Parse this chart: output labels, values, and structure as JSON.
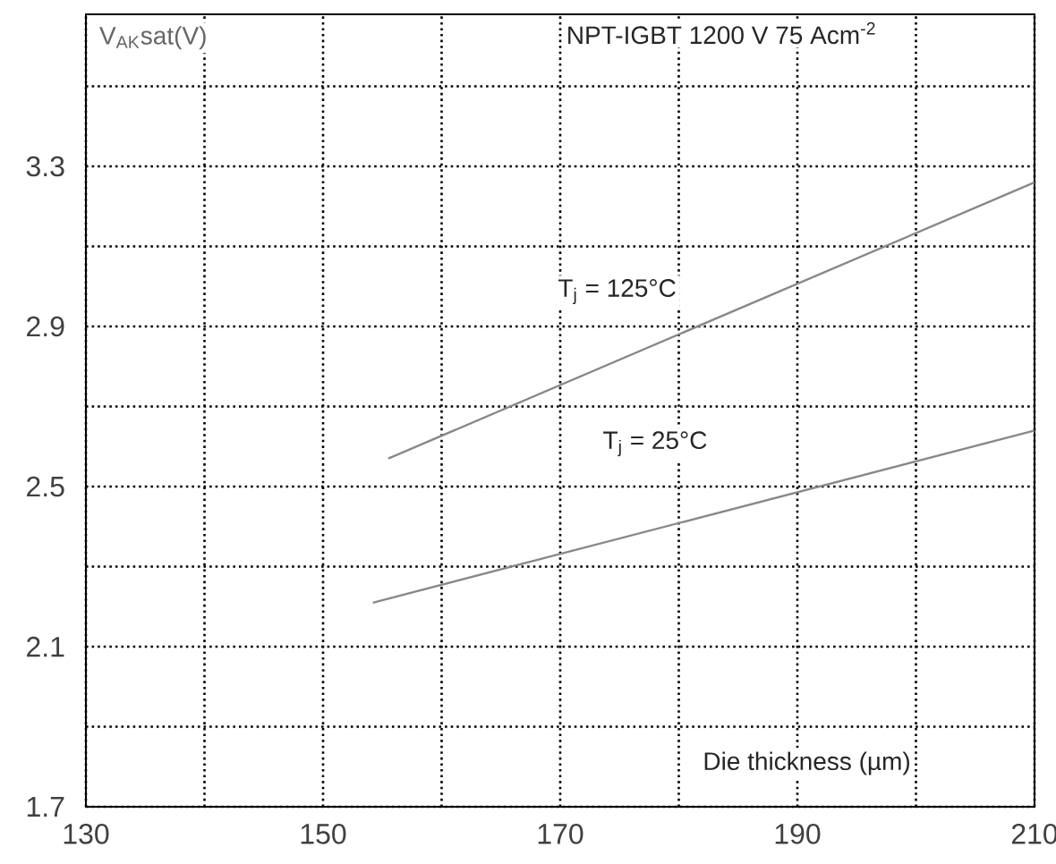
{
  "chart_data": {
    "type": "line",
    "title": "NPT-IGBT 1200 V 75 Acm$^{-2}$",
    "xlabel": "Die thickness (µm)",
    "ylabel": "V$_{AK}$sat(V)",
    "xlim": [
      130,
      210
    ],
    "ylim": [
      1.7,
      3.68
    ],
    "xticks": [
      130,
      {
        "value": 140,
        "label": null
      },
      150,
      {
        "value": 160,
        "label": null
      },
      170,
      {
        "value": 180,
        "label": null
      },
      190,
      {
        "value": 200,
        "label": null
      },
      210
    ],
    "yticks": [
      1.7,
      {
        "value": 1.9,
        "label": null
      },
      2.1,
      {
        "value": 2.3,
        "label": null
      },
      2.5,
      {
        "value": 2.7,
        "label": null
      },
      2.9,
      {
        "value": 3.1,
        "label": null
      },
      3.3,
      {
        "value": 3.5,
        "label": null
      }
    ],
    "grid": true,
    "series": [
      {
        "color": "#888888",
        "x": [
          155.5,
          210
        ],
        "values": [
          2.57,
          3.26
        ]
      },
      {
        "color": "#888888",
        "x": [
          154.2,
          210
        ],
        "values": [
          2.21,
          2.64
        ]
      }
    ],
    "annotations": [
      "T$_{j}$ = 125°C",
      "T$_{j}$ = 25°C"
    ]
  }
}
